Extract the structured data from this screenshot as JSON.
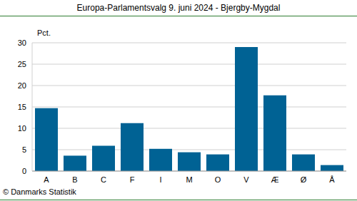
{
  "chart_data": {
    "type": "bar",
    "title": "Europa-Parlamentsvalg 9. juni 2024 - Bjergby-Mygdal",
    "y_label": "Pct.",
    "annotation": "© Danmarks Statistik",
    "categories": [
      "A",
      "B",
      "C",
      "F",
      "I",
      "M",
      "O",
      "V",
      "Æ",
      "Ø",
      "Å"
    ],
    "values": [
      14.7,
      3.6,
      5.9,
      11.2,
      5.2,
      4.4,
      3.9,
      29.0,
      17.7,
      3.9,
      1.4
    ],
    "color": "#006294",
    "ylim": [
      0,
      30
    ],
    "yticks": [
      0,
      5,
      10,
      15,
      20,
      25,
      30
    ],
    "grid": true
  }
}
